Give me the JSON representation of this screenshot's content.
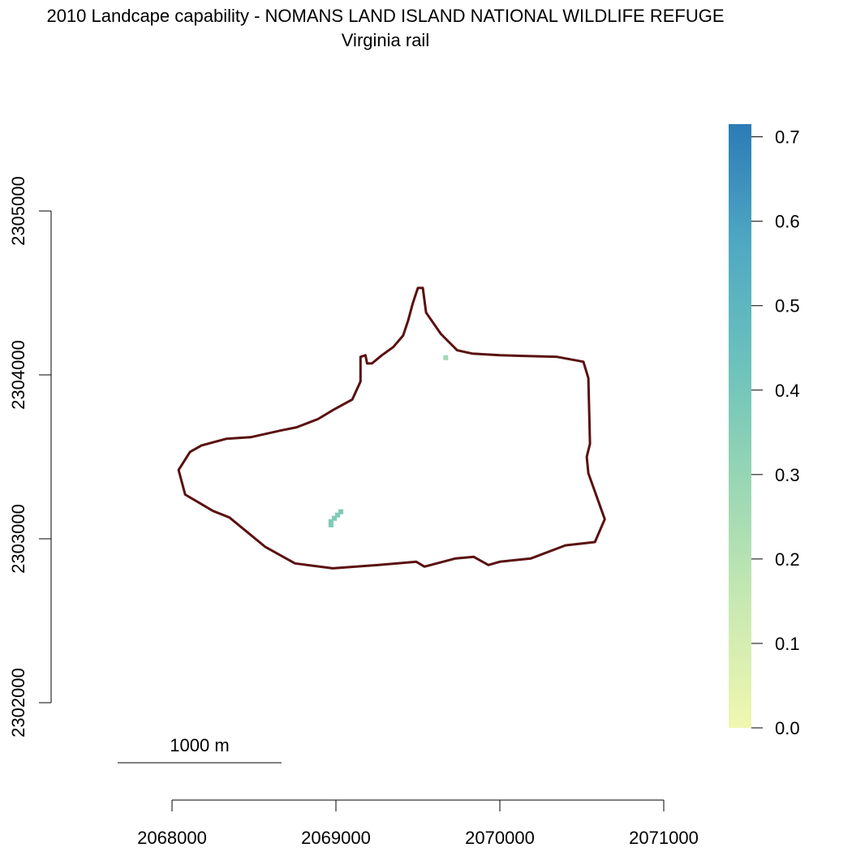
{
  "title": "2010 Landcape capability - NOMANS LAND ISLAND NATIONAL WILDLIFE REFUGE",
  "subtitle": "Virginia rail",
  "x_axis": {
    "ticks": [
      "2068000",
      "2069000",
      "2070000",
      "2071000"
    ],
    "tick_values": [
      2068000,
      2069000,
      2070000,
      2071000
    ],
    "range": [
      2068000,
      2071000
    ]
  },
  "y_axis": {
    "ticks": [
      "2302000",
      "2303000",
      "2304000",
      "2305000"
    ],
    "tick_values": [
      2302000,
      2303000,
      2304000,
      2305000
    ],
    "range": [
      2302000,
      2305000
    ]
  },
  "colorbar": {
    "ticks": [
      "0.0",
      "0.1",
      "0.2",
      "0.3",
      "0.4",
      "0.5",
      "0.6",
      "0.7"
    ],
    "tick_values": [
      0.0,
      0.1,
      0.2,
      0.3,
      0.4,
      0.5,
      0.6,
      0.7
    ],
    "range": [
      0,
      0.715
    ],
    "colors": [
      "#f0f7b0",
      "#c9e9b2",
      "#96d5b4",
      "#6cc2bc",
      "#4fa9c2",
      "#2b7bb6"
    ]
  },
  "scalebar": {
    "label": "1000 m",
    "length_m": 1000
  },
  "boundary": {
    "color": "#5a1010",
    "points": [
      [
        2069500,
        2304530
      ],
      [
        2069470,
        2304440
      ],
      [
        2069440,
        2304330
      ],
      [
        2069410,
        2304240
      ],
      [
        2069350,
        2304170
      ],
      [
        2069280,
        2304120
      ],
      [
        2069220,
        2304070
      ],
      [
        2069190,
        2304070
      ],
      [
        2069180,
        2304120
      ],
      [
        2069150,
        2304110
      ],
      [
        2069150,
        2303960
      ],
      [
        2069100,
        2303850
      ],
      [
        2068990,
        2303790
      ],
      [
        2068890,
        2303730
      ],
      [
        2068760,
        2303680
      ],
      [
        2068660,
        2303660
      ],
      [
        2068480,
        2303620
      ],
      [
        2068330,
        2303610
      ],
      [
        2068180,
        2303570
      ],
      [
        2068110,
        2303530
      ],
      [
        2068040,
        2303420
      ],
      [
        2068080,
        2303270
      ],
      [
        2068250,
        2303170
      ],
      [
        2068350,
        2303130
      ],
      [
        2068570,
        2302950
      ],
      [
        2068750,
        2302850
      ],
      [
        2068980,
        2302820
      ],
      [
        2069260,
        2302840
      ],
      [
        2069490,
        2302860
      ],
      [
        2069540,
        2302830
      ],
      [
        2069730,
        2302880
      ],
      [
        2069840,
        2302890
      ],
      [
        2069930,
        2302840
      ],
      [
        2070000,
        2302860
      ],
      [
        2070190,
        2302880
      ],
      [
        2070400,
        2302960
      ],
      [
        2070580,
        2302980
      ],
      [
        2070640,
        2303120
      ],
      [
        2070540,
        2303400
      ],
      [
        2070530,
        2303500
      ],
      [
        2070550,
        2303580
      ],
      [
        2070540,
        2303980
      ],
      [
        2070510,
        2304080
      ],
      [
        2070350,
        2304110
      ],
      [
        2070000,
        2304120
      ],
      [
        2069830,
        2304130
      ],
      [
        2069740,
        2304150
      ],
      [
        2069640,
        2304250
      ],
      [
        2069550,
        2304380
      ],
      [
        2069530,
        2304530
      ]
    ]
  },
  "cells": [
    {
      "x": 2069670,
      "y": 2304105,
      "value": 0.25
    },
    {
      "x": 2069030,
      "y": 2303165,
      "value": 0.36
    },
    {
      "x": 2069010,
      "y": 2303145,
      "value": 0.36
    },
    {
      "x": 2068990,
      "y": 2303125,
      "value": 0.36
    },
    {
      "x": 2068970,
      "y": 2303105,
      "value": 0.36
    },
    {
      "x": 2068970,
      "y": 2303085,
      "value": 0.36
    }
  ]
}
